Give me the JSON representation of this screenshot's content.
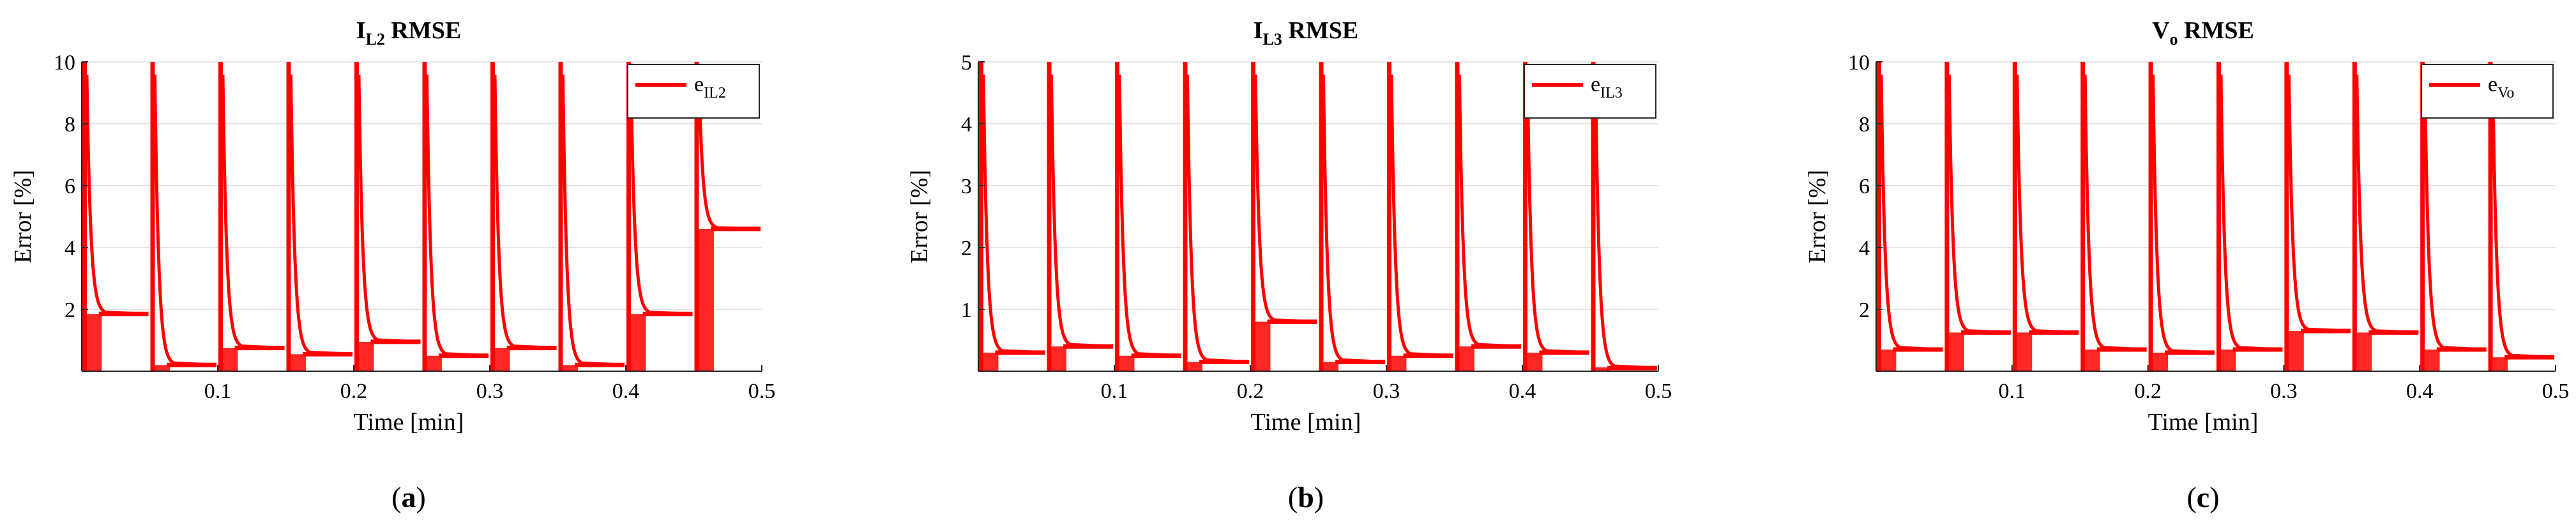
{
  "chart_data": [
    {
      "type": "line",
      "panel": "a",
      "title": {
        "main": "I",
        "sub": "L2",
        "rest": " RMSE"
      },
      "xlabel": "Time [min]",
      "ylabel": "Error [%]",
      "xlim": [
        0,
        0.5
      ],
      "ylim": [
        0,
        10
      ],
      "xticks": [
        0.1,
        0.2,
        0.3,
        0.4,
        0.5
      ],
      "yticks": [
        2,
        4,
        6,
        8,
        10
      ],
      "legend": {
        "main": "e",
        "sub": "IL2",
        "position": "top-right"
      },
      "color": "#ff0000",
      "segments": [
        {
          "start": 0.0,
          "end": 0.05,
          "level": 1.85
        },
        {
          "start": 0.05,
          "end": 0.1,
          "level": 0.2
        },
        {
          "start": 0.1,
          "end": 0.15,
          "level": 0.75
        },
        {
          "start": 0.15,
          "end": 0.2,
          "level": 0.55
        },
        {
          "start": 0.2,
          "end": 0.25,
          "level": 0.95
        },
        {
          "start": 0.25,
          "end": 0.3,
          "level": 0.5
        },
        {
          "start": 0.3,
          "end": 0.35,
          "level": 0.75
        },
        {
          "start": 0.35,
          "end": 0.4,
          "level": 0.2
        },
        {
          "start": 0.4,
          "end": 0.45,
          "level": 1.85
        },
        {
          "start": 0.45,
          "end": 0.5,
          "level": 4.6
        }
      ],
      "caption": "a"
    },
    {
      "type": "line",
      "panel": "b",
      "title": {
        "main": "I",
        "sub": "L3",
        "rest": " RMSE"
      },
      "xlabel": "Time [min]",
      "ylabel": "Error [%]",
      "xlim": [
        0,
        0.5
      ],
      "ylim": [
        0,
        5
      ],
      "xticks": [
        0.1,
        0.2,
        0.3,
        0.4,
        0.5
      ],
      "yticks": [
        1,
        2,
        3,
        4,
        5
      ],
      "legend": {
        "main": "e",
        "sub": "IL3",
        "position": "top-right"
      },
      "color": "#ff0000",
      "segments": [
        {
          "start": 0.0,
          "end": 0.05,
          "level": 0.3
        },
        {
          "start": 0.05,
          "end": 0.1,
          "level": 0.4
        },
        {
          "start": 0.1,
          "end": 0.15,
          "level": 0.25
        },
        {
          "start": 0.15,
          "end": 0.2,
          "level": 0.15
        },
        {
          "start": 0.2,
          "end": 0.25,
          "level": 0.8
        },
        {
          "start": 0.25,
          "end": 0.3,
          "level": 0.15
        },
        {
          "start": 0.3,
          "end": 0.35,
          "level": 0.25
        },
        {
          "start": 0.35,
          "end": 0.4,
          "level": 0.4
        },
        {
          "start": 0.4,
          "end": 0.45,
          "level": 0.3
        },
        {
          "start": 0.45,
          "end": 0.5,
          "level": 0.05
        }
      ],
      "caption": "b"
    },
    {
      "type": "line",
      "panel": "c",
      "title": {
        "main": "V",
        "sub": "o",
        "rest": " RMSE"
      },
      "xlabel": "Time [min]",
      "ylabel": "Error [%]",
      "xlim": [
        0,
        0.5
      ],
      "ylim": [
        0,
        10
      ],
      "xticks": [
        0.1,
        0.2,
        0.3,
        0.4,
        0.5
      ],
      "yticks": [
        2,
        4,
        6,
        8,
        10
      ],
      "legend": {
        "main": "e",
        "sub": "Vo",
        "position": "top-right"
      },
      "color": "#ff0000",
      "segments": [
        {
          "start": 0.0,
          "end": 0.05,
          "level": 0.7
        },
        {
          "start": 0.05,
          "end": 0.1,
          "level": 1.25
        },
        {
          "start": 0.1,
          "end": 0.15,
          "level": 1.25
        },
        {
          "start": 0.15,
          "end": 0.2,
          "level": 0.7
        },
        {
          "start": 0.2,
          "end": 0.25,
          "level": 0.6
        },
        {
          "start": 0.25,
          "end": 0.3,
          "level": 0.7
        },
        {
          "start": 0.3,
          "end": 0.35,
          "level": 1.3
        },
        {
          "start": 0.35,
          "end": 0.4,
          "level": 1.25
        },
        {
          "start": 0.4,
          "end": 0.45,
          "level": 0.7
        },
        {
          "start": 0.45,
          "end": 0.5,
          "level": 0.45
        }
      ],
      "caption": "c"
    }
  ]
}
